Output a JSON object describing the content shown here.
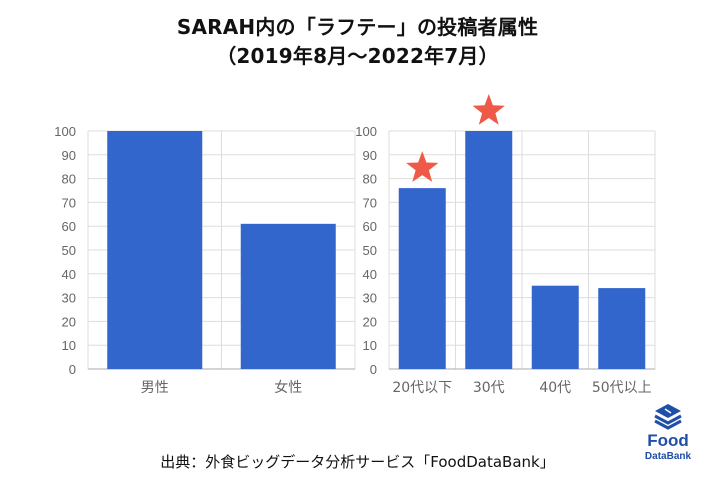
{
  "title": {
    "line1": "SARAH内の「ラフテー」の投稿者属性",
    "line2": "（2019年8月〜2022年7月）"
  },
  "source_text": "出典：外食ビッグデータ分析サービス「FoodDataBank」",
  "logo": {
    "word1": "Food",
    "word2": "DataBank",
    "color": "#1f4fa6"
  },
  "colors": {
    "bar": "#3366cc",
    "star": "#ee5a47",
    "grid": "#dddddd",
    "axis_text": "#666666"
  },
  "chart_data": [
    {
      "type": "bar",
      "categories": [
        "男性",
        "女性"
      ],
      "values": [
        100,
        61
      ],
      "ylim": [
        0,
        100
      ],
      "yticks": [
        0,
        10,
        20,
        30,
        40,
        50,
        60,
        70,
        80,
        90,
        100
      ],
      "grid": true,
      "highlighted": []
    },
    {
      "type": "bar",
      "categories": [
        "20代以下",
        "30代",
        "40代",
        "50代以上"
      ],
      "values": [
        76,
        100,
        35,
        34
      ],
      "ylim": [
        0,
        100
      ],
      "yticks": [
        0,
        10,
        20,
        30,
        40,
        50,
        60,
        70,
        80,
        90,
        100
      ],
      "grid": true,
      "highlighted": [
        "20代以下",
        "30代"
      ]
    }
  ]
}
